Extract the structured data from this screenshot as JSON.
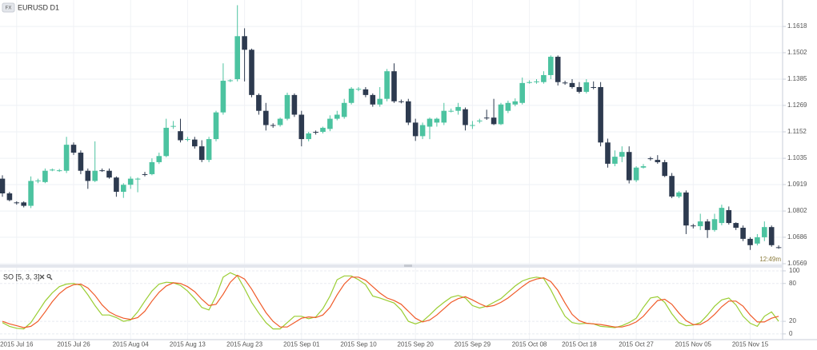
{
  "chart_data": [
    {
      "type": "candlestick",
      "badge": "FX",
      "title": "EURUSD D1",
      "annotation": "12:49m",
      "up_color": "#4cc3a0",
      "down_color": "#2d3a4f",
      "grid": true,
      "ylim": [
        1.0562,
        1.1735
      ],
      "yticks": [
        1.0569,
        1.0686,
        1.0802,
        1.0919,
        1.1035,
        1.1152,
        1.1269,
        1.1385,
        1.1502,
        1.1618
      ],
      "categories": [
        null,
        null,
        "2015 Jul 16",
        null,
        null,
        null,
        null,
        null,
        null,
        null,
        "2015 Jul 26",
        null,
        null,
        null,
        null,
        null,
        null,
        null,
        "2015 Aug 04",
        null,
        null,
        null,
        null,
        null,
        null,
        null,
        "2015 Aug 13",
        null,
        null,
        null,
        null,
        null,
        null,
        null,
        "2015 Aug 23",
        null,
        null,
        null,
        null,
        null,
        null,
        null,
        "2015 Sep 01",
        null,
        null,
        null,
        null,
        null,
        null,
        null,
        "2015 Sep 10",
        null,
        null,
        null,
        null,
        null,
        null,
        null,
        "2015 Sep 20",
        null,
        null,
        null,
        null,
        null,
        null,
        null,
        "2015 Sep 29",
        null,
        null,
        null,
        null,
        null,
        null,
        null,
        "2015 Oct 08",
        null,
        null,
        null,
        null,
        null,
        null,
        "2015 Oct 18",
        null,
        null,
        null,
        null,
        null,
        null,
        null,
        "2015 Oct 27",
        null,
        null,
        null,
        null,
        null,
        null,
        null,
        "2015 Nov 05",
        null,
        null,
        null,
        null,
        null,
        null,
        null,
        "2015 Nov 15",
        null,
        null,
        null,
        null
      ],
      "open": [
        1.0945,
        1.088,
        1.084,
        1.084,
        1.0825,
        1.0935,
        1.093,
        1.0982,
        1.098,
        1.098,
        1.1095,
        1.106,
        1.098,
        1.0935,
        1.0982,
        1.098,
        1.095,
        1.0887,
        1.0918,
        1.0945,
        1.0965,
        1.0965,
        1.1018,
        1.1045,
        1.1175,
        1.1155,
        1.1118,
        1.1118,
        1.1088,
        1.1028,
        1.112,
        1.1238,
        1.1378,
        1.1385,
        1.1575,
        1.1515,
        1.1315,
        1.1245,
        1.1182,
        1.1182,
        1.121,
        1.1315,
        1.1228,
        1.112,
        1.1152,
        1.1152,
        1.1165,
        1.121,
        1.1218,
        1.128,
        1.134,
        1.134,
        1.1315,
        1.1273,
        1.1298,
        1.142,
        1.1287,
        1.1287,
        1.1193,
        1.1133,
        1.1175,
        1.1193,
        1.1193,
        1.1245,
        1.1245,
        1.1252,
        1.1182,
        1.12,
        1.1215,
        1.1215,
        1.1186,
        1.1245,
        1.1273,
        1.128,
        1.1371,
        1.1372,
        1.1372,
        1.1403,
        1.1484,
        1.137,
        1.1368,
        1.135,
        1.1329,
        1.135,
        1.135,
        1.1105,
        1.1011,
        1.1042,
        1.1063,
        1.0938,
        1.0994,
        1.1035,
        1.1028,
        1.1018,
        1.0957,
        1.0866,
        1.0884,
        1.0738,
        1.0735,
        1.0756,
        1.0718,
        1.0749,
        1.0806,
        1.0749,
        1.0728,
        1.0679,
        1.0658,
        1.0686,
        1.0731,
        1.0642
      ],
      "high": [
        1.096,
        1.0887,
        1.0845,
        1.0845,
        1.0955,
        1.0945,
        1.099,
        1.099,
        1.0988,
        1.113,
        1.1105,
        1.107,
        1.099,
        1.111,
        1.099,
        1.099,
        1.0955,
        1.0925,
        1.0955,
        1.095,
        1.0975,
        1.1035,
        1.106,
        1.121,
        1.12,
        1.121,
        1.113,
        1.113,
        1.1115,
        1.113,
        1.1245,
        1.1455,
        1.1385,
        1.1712,
        1.161,
        1.152,
        1.1322,
        1.128,
        1.119,
        1.1215,
        1.1325,
        1.1322,
        1.1245,
        1.1152,
        1.1158,
        1.1175,
        1.1225,
        1.1245,
        1.1298,
        1.135,
        1.135,
        1.135,
        1.1322,
        1.135,
        1.143,
        1.1455,
        1.1295,
        1.1298,
        1.121,
        1.1193,
        1.1215,
        1.1215,
        1.128,
        1.1255,
        1.128,
        1.126,
        1.12,
        1.121,
        1.125,
        1.1298,
        1.128,
        1.129,
        1.13,
        1.1392,
        1.138,
        1.1385,
        1.142,
        1.149,
        1.149,
        1.1378,
        1.1385,
        1.1372,
        1.1385,
        1.1375,
        1.1372,
        1.1122,
        1.107,
        1.1088,
        1.1088,
        1.1,
        1.101,
        1.1042,
        1.1049,
        1.1028,
        1.097,
        1.089,
        1.0893,
        1.0745,
        1.079,
        1.0766,
        1.079,
        1.083,
        1.0822,
        1.0752,
        1.0738,
        1.0686,
        1.07,
        1.0756,
        1.0738,
        1.065
      ],
      "low": [
        1.0865,
        1.0845,
        1.083,
        1.0818,
        1.0815,
        1.0925,
        1.0925,
        1.0978,
        1.0975,
        1.097,
        1.105,
        1.0965,
        1.09,
        1.093,
        1.0975,
        1.0945,
        1.0865,
        1.086,
        1.09,
        1.0885,
        1.0955,
        1.096,
        1.101,
        1.104,
        1.1165,
        1.1105,
        1.111,
        1.1078,
        1.1018,
        1.1018,
        1.111,
        1.1228,
        1.1372,
        1.1375,
        1.1375,
        1.1305,
        1.1228,
        1.1158,
        1.117,
        1.1175,
        1.1203,
        1.1218,
        1.1088,
        1.111,
        1.114,
        1.1145,
        1.1155,
        1.1203,
        1.121,
        1.1273,
        1.1332,
        1.1305,
        1.1263,
        1.1263,
        1.1287,
        1.128,
        1.1278,
        1.1182,
        1.1112,
        1.112,
        1.112,
        1.1175,
        1.1182,
        1.1238,
        1.1228,
        1.1158,
        1.1165,
        1.119,
        1.1205,
        1.1182,
        1.1182,
        1.1235,
        1.1265,
        1.1273,
        1.1365,
        1.1365,
        1.1365,
        1.1385,
        1.1357,
        1.136,
        1.1343,
        1.1322,
        1.1322,
        1.134,
        1.1088,
        1.0994,
        1.1,
        1.1018,
        1.0924,
        1.093,
        1.099,
        1.1025,
        1.1011,
        1.0952,
        1.0859,
        1.0859,
        1.07,
        1.0725,
        1.0718,
        1.0683,
        1.0711,
        1.0739,
        1.0742,
        1.0718,
        1.0669,
        1.063,
        1.065,
        1.0669,
        1.0644,
        1.0635
      ],
      "close": [
        1.088,
        1.085,
        1.0838,
        1.0825,
        1.0935,
        1.0937,
        1.098,
        1.0985,
        1.0982,
        1.1095,
        1.106,
        1.098,
        1.0935,
        1.098,
        1.098,
        1.095,
        1.0887,
        1.0918,
        1.0945,
        1.0945,
        1.0962,
        1.1018,
        1.1045,
        1.117,
        1.1178,
        1.1115,
        1.112,
        1.1088,
        1.1028,
        1.112,
        1.1238,
        1.1378,
        1.138,
        1.1575,
        1.1515,
        1.1315,
        1.1245,
        1.1182,
        1.118,
        1.121,
        1.1315,
        1.1228,
        1.112,
        1.1145,
        1.115,
        1.117,
        1.121,
        1.1228,
        1.128,
        1.1343,
        1.1342,
        1.1315,
        1.1273,
        1.1298,
        1.142,
        1.1287,
        1.1285,
        1.1193,
        1.1133,
        1.1182,
        1.121,
        1.121,
        1.1245,
        1.1245,
        1.1262,
        1.1182,
        1.1182,
        1.1202,
        1.1213,
        1.1186,
        1.1273,
        1.128,
        1.1287,
        1.1368,
        1.1372,
        1.1375,
        1.1403,
        1.1484,
        1.1372,
        1.1368,
        1.135,
        1.1329,
        1.1371,
        1.1348,
        1.1105,
        1.1011,
        1.1042,
        1.1063,
        1.0938,
        1.0994,
        1.1,
        1.1033,
        1.1018,
        1.0957,
        1.0866,
        1.0884,
        1.0738,
        1.0735,
        1.0756,
        1.0718,
        1.0766,
        1.0816,
        1.0749,
        1.0728,
        1.0679,
        1.0651,
        1.0686,
        1.0731,
        1.0651,
        1.064
      ]
    },
    {
      "type": "line",
      "title": "SO [5, 3, 3]",
      "ylim": [
        -9,
        105
      ],
      "yticks": [
        0,
        20,
        80,
        100
      ],
      "grid": true,
      "series": [
        {
          "color": "#9acd32",
          "values": [
            18,
            12,
            9,
            8,
            18,
            35,
            52,
            65,
            75,
            79,
            80,
            77,
            62,
            45,
            30,
            30,
            26,
            20,
            22,
            35,
            52,
            68,
            79,
            82,
            81,
            77,
            68,
            56,
            42,
            38,
            60,
            90,
            97,
            92,
            72,
            50,
            33,
            18,
            8,
            8,
            18,
            28,
            28,
            24,
            27,
            40,
            60,
            86,
            92,
            92,
            86,
            78,
            60,
            57,
            53,
            49,
            38,
            20,
            16,
            20,
            30,
            41,
            50,
            58,
            61,
            57,
            45,
            41,
            44,
            50,
            56,
            66,
            76,
            84,
            88,
            90,
            88,
            70,
            48,
            28,
            18,
            16,
            17,
            16,
            12,
            11,
            10,
            13,
            18,
            25,
            42,
            57,
            59,
            50,
            32,
            18,
            13,
            14,
            18,
            30,
            44,
            54,
            57,
            46,
            28,
            17,
            12,
            28,
            35,
            20
          ]
        },
        {
          "color": "#f05a28",
          "values": [
            20,
            16,
            13,
            10,
            12,
            20,
            35,
            51,
            64,
            73,
            78,
            79,
            73,
            61,
            46,
            35,
            29,
            25,
            23,
            26,
            36,
            52,
            66,
            76,
            81,
            80,
            75,
            67,
            55,
            45,
            47,
            63,
            82,
            93,
            87,
            71,
            52,
            34,
            20,
            11,
            11,
            18,
            25,
            27,
            26,
            30,
            42,
            62,
            79,
            90,
            90,
            85,
            75,
            65,
            57,
            53,
            47,
            36,
            25,
            19,
            22,
            30,
            40,
            50,
            56,
            59,
            54,
            48,
            43,
            45,
            50,
            57,
            66,
            75,
            83,
            87,
            89,
            83,
            69,
            49,
            31,
            21,
            17,
            16,
            15,
            13,
            11,
            11,
            14,
            19,
            28,
            41,
            53,
            55,
            47,
            33,
            21,
            15,
            15,
            21,
            31,
            43,
            52,
            52,
            44,
            30,
            19,
            19,
            25,
            28
          ]
        }
      ]
    }
  ]
}
